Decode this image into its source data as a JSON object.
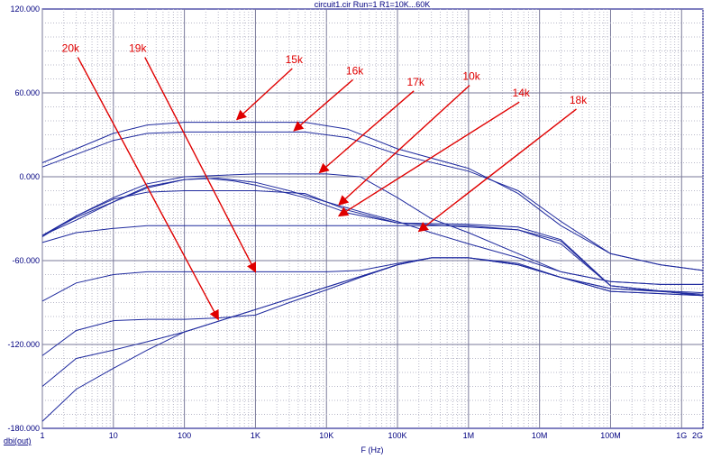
{
  "chart_data": {
    "type": "line",
    "title": "circuit1.cir Run=1 R1=10K...60K",
    "xlabel": "F (Hz)",
    "ylabel": "dbi(out)",
    "xscale": "log",
    "xlim": [
      1,
      2000000000
    ],
    "ylim": [
      -180,
      120
    ],
    "grid": true,
    "x_ticks": [
      {
        "value": 1,
        "label": "1"
      },
      {
        "value": 10,
        "label": "10"
      },
      {
        "value": 100,
        "label": "100"
      },
      {
        "value": 1000,
        "label": "1K"
      },
      {
        "value": 10000,
        "label": "10K"
      },
      {
        "value": 100000,
        "label": "100K"
      },
      {
        "value": 1000000,
        "label": "1M"
      },
      {
        "value": 10000000,
        "label": "10M"
      },
      {
        "value": 100000000,
        "label": "100M"
      },
      {
        "value": 1000000000,
        "label": "1G"
      },
      {
        "value": 2000000000,
        "label": "2G"
      }
    ],
    "y_ticks": [
      {
        "value": 120,
        "label": "120.000"
      },
      {
        "value": 60,
        "label": "60.000"
      },
      {
        "value": 0,
        "label": "0.000"
      },
      {
        "value": -60,
        "label": "-60.000"
      },
      {
        "value": -120,
        "label": "-120.000"
      },
      {
        "value": -180,
        "label": "-180.000"
      }
    ],
    "series": [
      {
        "x": [
          1,
          3,
          10,
          30,
          100,
          1000,
          5000,
          20000,
          100000,
          1000000,
          5000000,
          20000000,
          100000000,
          500000000,
          2000000000
        ],
        "y": [
          10,
          20,
          31,
          37,
          39,
          39,
          39,
          34,
          20,
          6,
          -12,
          -35,
          -55,
          -63,
          -67
        ]
      },
      {
        "x": [
          1,
          3,
          10,
          30,
          100,
          1000,
          5000,
          20000,
          100000,
          1000000,
          5000000,
          20000000,
          100000000,
          500000000,
          2000000000
        ],
        "y": [
          7,
          16,
          26,
          31,
          32,
          32,
          32,
          28,
          16,
          4,
          -10,
          -32,
          -55,
          -63,
          -67
        ]
      },
      {
        "x": [
          1,
          3,
          10,
          30,
          100,
          1000,
          10000,
          30000,
          100000,
          300000,
          1000000,
          5000000,
          20000000,
          100000000,
          500000000,
          2000000000
        ],
        "y": [
          -42,
          -28,
          -15,
          -5,
          0,
          2,
          2,
          0,
          -15,
          -30,
          -40,
          -55,
          -68,
          -75,
          -77,
          -77
        ]
      },
      {
        "x": [
          1,
          3,
          10,
          30,
          100,
          200,
          500,
          1000,
          5000,
          20000,
          100000,
          1000000,
          5000000,
          20000000,
          100000000,
          2000000000
        ],
        "y": [
          -42,
          -31,
          -18,
          -7,
          -2,
          -1,
          -3,
          -6,
          -15,
          -26,
          -33,
          -36,
          -38,
          -46,
          -78,
          -85
        ]
      },
      {
        "x": [
          1,
          3,
          10,
          30,
          100,
          300,
          1000,
          3000,
          10000,
          30000,
          100000,
          300000,
          1000000,
          5000000,
          20000000,
          100000000,
          500000000,
          2000000000
        ],
        "y": [
          -42,
          -29,
          -18,
          -8,
          -2,
          -1,
          -4,
          -10,
          -18,
          -25,
          -32,
          -40,
          -48,
          -58,
          -68,
          -75,
          -77,
          -77
        ]
      },
      {
        "x": [
          1,
          3,
          10,
          30,
          100,
          1000,
          5000,
          20000,
          100000,
          1000000,
          5000000,
          20000000,
          100000000,
          2000000000
        ],
        "y": [
          -43,
          -28,
          -16,
          -11,
          -10,
          -10,
          -12,
          -24,
          -33,
          -34,
          -36,
          -45,
          -78,
          -85
        ]
      },
      {
        "x": [
          1,
          3,
          10,
          30,
          100,
          1000,
          10000,
          100000,
          1000000,
          5000000,
          20000000,
          100000000,
          2000000000
        ],
        "y": [
          -47,
          -40,
          -37,
          -35,
          -35,
          -35,
          -35,
          -35,
          -35,
          -38,
          -48,
          -78,
          -85
        ]
      },
      {
        "x": [
          1,
          3,
          10,
          30,
          100,
          1000,
          10000,
          30000,
          100000,
          300000,
          1000000,
          5000000,
          20000000,
          100000000,
          2000000000
        ],
        "y": [
          -89,
          -76,
          -70,
          -68,
          -68,
          -68,
          -68,
          -67,
          -62,
          -58,
          -58,
          -62,
          -72,
          -80,
          -83
        ]
      },
      {
        "x": [
          1,
          3,
          10,
          30,
          100,
          300,
          1000,
          3000,
          10000,
          30000,
          100000,
          300000,
          1000000,
          5000000,
          20000000,
          100000000,
          2000000000
        ],
        "y": [
          -128,
          -110,
          -103,
          -102,
          -102,
          -101,
          -99,
          -90,
          -81,
          -72,
          -63,
          -58,
          -58,
          -63,
          -72,
          -80,
          -84
        ]
      },
      {
        "x": [
          1,
          3,
          10,
          30,
          100,
          1000,
          10000,
          100000,
          300000,
          1000000,
          5000000,
          20000000,
          100000000,
          2000000000
        ],
        "y": [
          -150,
          -130,
          -124,
          -118,
          -111,
          -95,
          -79,
          -63,
          -58,
          -58,
          -63,
          -72,
          -82,
          -85
        ]
      },
      {
        "x": [
          1,
          3,
          10,
          30,
          100,
          1000,
          10000,
          100000,
          300000,
          1000000,
          5000000,
          20000000,
          100000000,
          2000000000
        ],
        "y": [
          -175,
          -152,
          -137,
          -124,
          -111,
          -95,
          -79,
          -63,
          -58,
          -58,
          -63,
          -72,
          -82,
          -85
        ]
      }
    ],
    "annotations": [
      {
        "text": "20k",
        "label_x": 2.5,
        "label_y": 88,
        "tip_x": 300,
        "tip_y": -102
      },
      {
        "text": "19k",
        "label_x": 22,
        "label_y": 88,
        "tip_x": 1000,
        "tip_y": -68
      },
      {
        "text": "15k",
        "label_x": 3500,
        "label_y": 80,
        "tip_x": 550,
        "tip_y": 41
      },
      {
        "text": "16k",
        "label_x": 25000,
        "label_y": 72,
        "tip_x": 3500,
        "tip_y": 33
      },
      {
        "text": "17k",
        "label_x": 180000,
        "label_y": 64,
        "tip_x": 8000,
        "tip_y": 3
      },
      {
        "text": "10k",
        "label_x": 1100000,
        "label_y": 68,
        "tip_x": 15000,
        "tip_y": -20
      },
      {
        "text": "14k",
        "label_x": 5500000,
        "label_y": 56,
        "tip_x": 15000,
        "tip_y": -28
      },
      {
        "text": "18k",
        "label_x": 35000000,
        "label_y": 51,
        "tip_x": 200000,
        "tip_y": -39
      }
    ]
  }
}
